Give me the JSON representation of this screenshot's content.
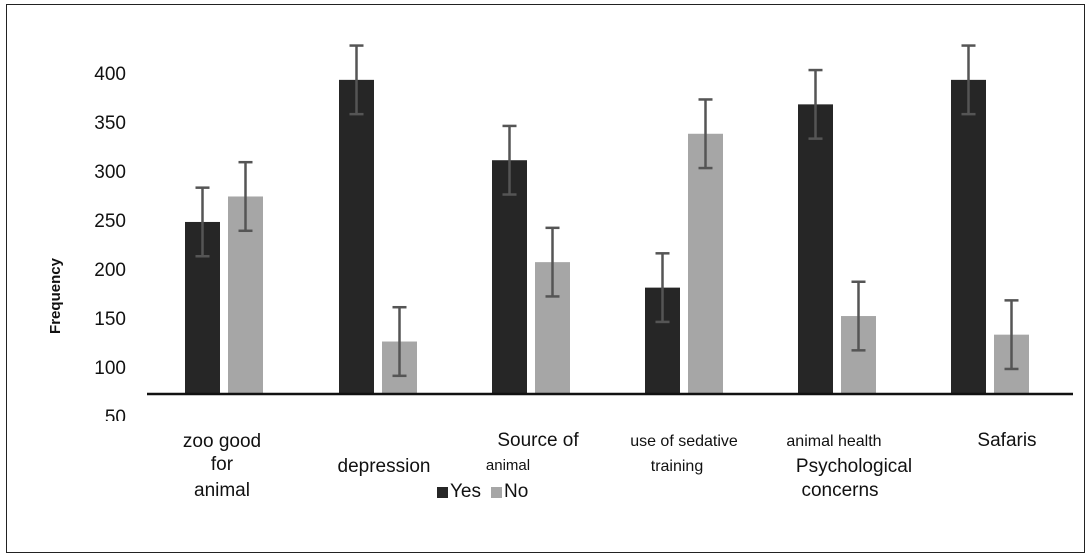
{
  "chart_data": {
    "type": "bar",
    "ylabel": "Frequency",
    "ylim": [
      50,
      430
    ],
    "yticks": [
      50,
      100,
      150,
      200,
      250,
      300,
      350,
      400
    ],
    "categories": [
      {
        "lines": [
          "zoo good",
          "for",
          "animal"
        ]
      },
      {
        "lines": [
          "depression"
        ]
      },
      {
        "lines": [
          "Source of",
          "animal"
        ]
      },
      {
        "lines": [
          "use of sedative",
          "training"
        ]
      },
      {
        "lines": [
          "animal health",
          "Psychological",
          "concerns"
        ]
      },
      {
        "lines": [
          "Safaris"
        ]
      }
    ],
    "series": [
      {
        "name": "Yes",
        "values": [
          248,
          393,
          311,
          181,
          368,
          393
        ],
        "error": [
          35,
          35,
          35,
          35,
          35,
          35
        ]
      },
      {
        "name": "No",
        "values": [
          274,
          126,
          207,
          338,
          152,
          133
        ],
        "error": [
          35,
          35,
          35,
          35,
          35,
          35
        ]
      }
    ],
    "colors": {
      "Yes": "#262626",
      "No": "#a6a6a6",
      "error_bar": "#555555",
      "axis": "#111111"
    },
    "legend_position": "bottom",
    "grid": false
  }
}
